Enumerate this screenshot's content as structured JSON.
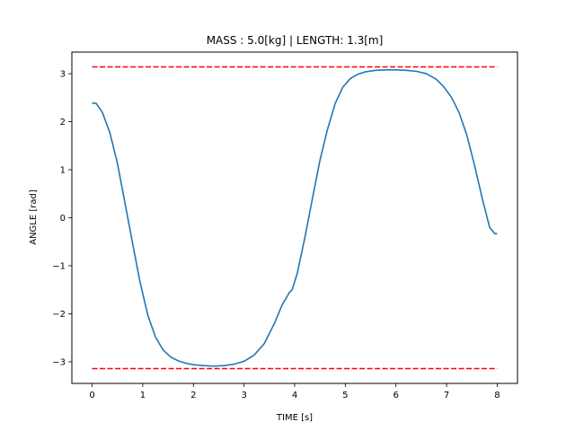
{
  "chart_data": {
    "type": "line",
    "title": "MASS : 5.0[kg] | LENGTH: 1.3[m]",
    "xlabel": "TIME [s]",
    "ylabel": "ANGLE [rad]",
    "xlim": [
      -0.4,
      8.4
    ],
    "ylim": [
      -3.45,
      3.45
    ],
    "xticks": [
      0,
      1,
      2,
      3,
      4,
      5,
      6,
      7,
      8
    ],
    "yticks": [
      -3,
      -2,
      -1,
      0,
      1,
      2,
      3
    ],
    "grid": false,
    "series": [
      {
        "color": "#1f77b4",
        "style": "solid",
        "x": [
          0,
          0.08,
          0.2,
          0.35,
          0.5,
          0.65,
          0.8,
          0.95,
          1.1,
          1.25,
          1.4,
          1.55,
          1.7,
          1.85,
          2.0,
          2.2,
          2.4,
          2.6,
          2.8,
          3.0,
          3.2,
          3.4,
          3.6,
          3.75,
          3.9,
          3.95,
          4.05,
          4.2,
          4.35,
          4.5,
          4.65,
          4.8,
          4.95,
          5.1,
          5.25,
          5.4,
          5.6,
          5.8,
          6.0,
          6.2,
          6.4,
          6.6,
          6.8,
          6.95,
          7.1,
          7.25,
          7.4,
          7.55,
          7.7,
          7.85,
          7.95,
          8.0
        ],
        "y": [
          2.39,
          2.38,
          2.2,
          1.77,
          1.13,
          0.3,
          -0.54,
          -1.36,
          -2.03,
          -2.48,
          -2.75,
          -2.9,
          -2.98,
          -3.03,
          -3.06,
          -3.08,
          -3.09,
          -3.08,
          -3.05,
          -2.99,
          -2.86,
          -2.62,
          -2.2,
          -1.82,
          -1.55,
          -1.5,
          -1.16,
          -0.42,
          0.4,
          1.2,
          1.85,
          2.38,
          2.72,
          2.9,
          2.99,
          3.04,
          3.07,
          3.08,
          3.08,
          3.07,
          3.05,
          3.0,
          2.88,
          2.72,
          2.5,
          2.18,
          1.72,
          1.1,
          0.42,
          -0.2,
          -0.33,
          -0.33
        ]
      },
      {
        "color": "#ff0000",
        "style": "dashed",
        "x": [
          0,
          8
        ],
        "y": [
          3.14159,
          3.14159
        ]
      },
      {
        "color": "#ff0000",
        "style": "dashed",
        "x": [
          0,
          8
        ],
        "y": [
          -3.14159,
          -3.14159
        ]
      }
    ]
  }
}
